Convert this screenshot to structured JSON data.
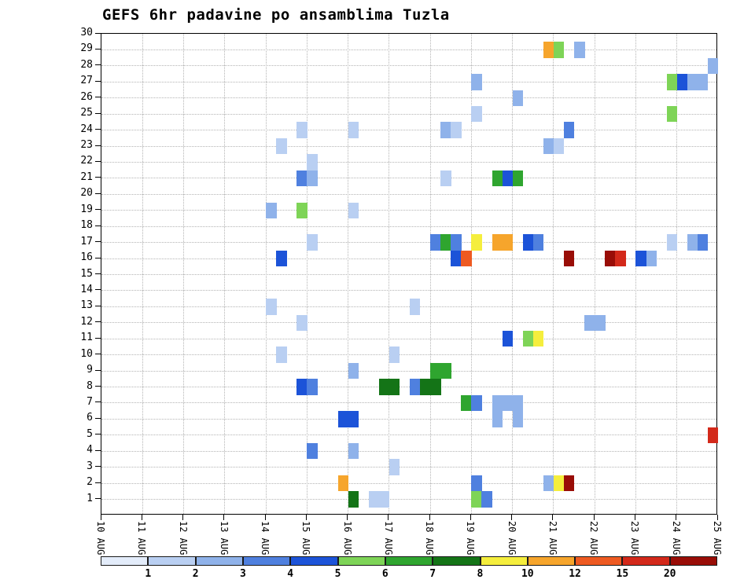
{
  "title": "GEFS 6hr padavine po ansamblima Tuzla",
  "chart_data": {
    "type": "heatmap",
    "title": "GEFS 6hr padavine po ansamblima Tuzla",
    "grid": "dotted",
    "x_tick_labels": [
      "10 AUG",
      "11 AUG",
      "12 AUG",
      "13 AUG",
      "14 AUG",
      "15 AUG",
      "16 AUG",
      "17 AUG",
      "18 AUG",
      "19 AUG",
      "20 AUG",
      "21 AUG",
      "22 AUG",
      "23 AUG",
      "24 AUG",
      "25 AUG"
    ],
    "x_steps_per_day": 4,
    "y_tick_labels": [
      1,
      2,
      3,
      4,
      5,
      6,
      7,
      8,
      9,
      10,
      11,
      12,
      13,
      14,
      15,
      16,
      17,
      18,
      19,
      20,
      21,
      22,
      23,
      24,
      25,
      26,
      27,
      28,
      29,
      30
    ],
    "y_range": [
      0,
      30
    ],
    "colorbar": {
      "position": "bottom",
      "tick_labels": [
        1,
        2,
        3,
        4,
        5,
        6,
        7,
        8,
        10,
        12,
        15,
        20
      ],
      "colors": [
        "#e3ecfa",
        "#b9cff2",
        "#8fb2ea",
        "#4f80df",
        "#1c53d8",
        "#7ed457",
        "#2fa52f",
        "#147417",
        "#f5ee3d",
        "#f6a52c",
        "#ee5a22",
        "#d3291a",
        "#990d07"
      ],
      "note": "colors[0] = below first level; colors[i] = bin starting at tick_labels[i-1]"
    },
    "cells_format": [
      "ensemble_member",
      "six_hour_step_from_10AUG_00",
      "precip_bin_lower_mm"
    ],
    "cells": [
      [
        29,
        43,
        10
      ],
      [
        29,
        44,
        5
      ],
      [
        29,
        46,
        2
      ],
      [
        28,
        59,
        2
      ],
      [
        27,
        36,
        2
      ],
      [
        27,
        55,
        5
      ],
      [
        27,
        56,
        4
      ],
      [
        27,
        57,
        2
      ],
      [
        27,
        58,
        2
      ],
      [
        26,
        40,
        2
      ],
      [
        25,
        36,
        1
      ],
      [
        25,
        55,
        5
      ],
      [
        24,
        19,
        1
      ],
      [
        24,
        24,
        1
      ],
      [
        24,
        33,
        2
      ],
      [
        24,
        34,
        1
      ],
      [
        24,
        45,
        3
      ],
      [
        23,
        17,
        1
      ],
      [
        23,
        43,
        2
      ],
      [
        23,
        44,
        1
      ],
      [
        22,
        20,
        1
      ],
      [
        21,
        19,
        3
      ],
      [
        21,
        20,
        2
      ],
      [
        21,
        33,
        1
      ],
      [
        21,
        38,
        6
      ],
      [
        21,
        39,
        4
      ],
      [
        21,
        40,
        6
      ],
      [
        19,
        16,
        2
      ],
      [
        19,
        19,
        5
      ],
      [
        19,
        24,
        1
      ],
      [
        17,
        20,
        1
      ],
      [
        17,
        32,
        3
      ],
      [
        17,
        33,
        6
      ],
      [
        17,
        34,
        3
      ],
      [
        17,
        36,
        8
      ],
      [
        17,
        38,
        10
      ],
      [
        17,
        39,
        10
      ],
      [
        17,
        41,
        4
      ],
      [
        17,
        42,
        3
      ],
      [
        17,
        55,
        1
      ],
      [
        17,
        57,
        2
      ],
      [
        17,
        58,
        3
      ],
      [
        16,
        17,
        4
      ],
      [
        16,
        34,
        4
      ],
      [
        16,
        35,
        12
      ],
      [
        16,
        45,
        20
      ],
      [
        16,
        49,
        20
      ],
      [
        16,
        50,
        15
      ],
      [
        16,
        52,
        4
      ],
      [
        16,
        53,
        2
      ],
      [
        13,
        16,
        1
      ],
      [
        13,
        30,
        1
      ],
      [
        12,
        19,
        1
      ],
      [
        12,
        47,
        2
      ],
      [
        12,
        48,
        2
      ],
      [
        11,
        39,
        4
      ],
      [
        11,
        41,
        5
      ],
      [
        11,
        42,
        8
      ],
      [
        10,
        17,
        1
      ],
      [
        10,
        28,
        1
      ],
      [
        9,
        24,
        2
      ],
      [
        9,
        32,
        6
      ],
      [
        9,
        33,
        6
      ],
      [
        8,
        19,
        4
      ],
      [
        8,
        20,
        3
      ],
      [
        8,
        27,
        7
      ],
      [
        8,
        28,
        7
      ],
      [
        8,
        30,
        3
      ],
      [
        8,
        31,
        7
      ],
      [
        8,
        32,
        7
      ],
      [
        7,
        35,
        6
      ],
      [
        7,
        36,
        3
      ],
      [
        7,
        38,
        2
      ],
      [
        7,
        39,
        2
      ],
      [
        7,
        40,
        2
      ],
      [
        6,
        23,
        4
      ],
      [
        6,
        24,
        4
      ],
      [
        6,
        38,
        2
      ],
      [
        6,
        40,
        2
      ],
      [
        5,
        59,
        15
      ],
      [
        4,
        20,
        3
      ],
      [
        4,
        24,
        2
      ],
      [
        3,
        28,
        1
      ],
      [
        2,
        23,
        10
      ],
      [
        2,
        36,
        3
      ],
      [
        2,
        43,
        2
      ],
      [
        2,
        44,
        8
      ],
      [
        2,
        45,
        20
      ],
      [
        1,
        24,
        7
      ],
      [
        1,
        26,
        1
      ],
      [
        1,
        27,
        1
      ],
      [
        1,
        36,
        5
      ],
      [
        1,
        37,
        3
      ]
    ]
  }
}
